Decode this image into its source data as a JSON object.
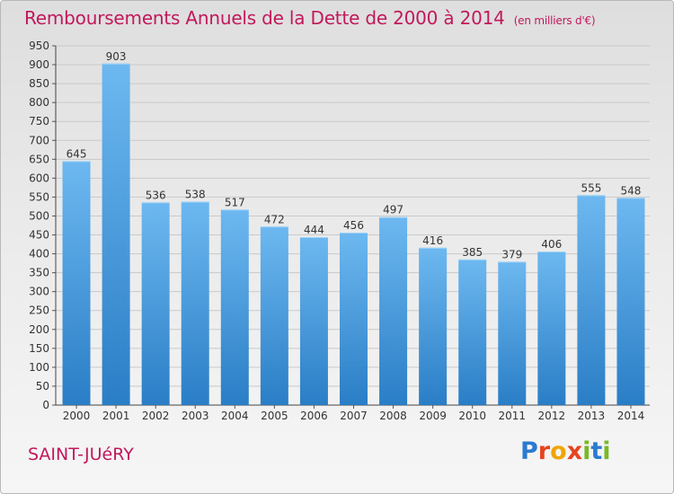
{
  "header": {
    "title": "Remboursements Annuels de la Dette de 2000 à 2014",
    "unit": "(en milliers d'€)"
  },
  "footer": {
    "place": "SAINT-JUéRY",
    "logo_letters": [
      "P",
      "r",
      "o",
      "x",
      "i",
      "t",
      "i"
    ]
  },
  "colors": {
    "title": "#c2185b",
    "bar_light": "#6db8f0",
    "bar_dark": "#2a7ec6",
    "grid": "#c9c9c9"
  },
  "chart_data": {
    "type": "bar",
    "title": "Remboursements Annuels de la Dette de 2000 à 2014",
    "xlabel": "",
    "ylabel": "",
    "categories": [
      "2000",
      "2001",
      "2002",
      "2003",
      "2004",
      "2005",
      "2006",
      "2007",
      "2008",
      "2009",
      "2010",
      "2011",
      "2012",
      "2013",
      "2014"
    ],
    "values": [
      645,
      903,
      536,
      538,
      517,
      472,
      444,
      456,
      497,
      416,
      385,
      379,
      406,
      555,
      548
    ],
    "ylim": [
      0,
      950
    ],
    "yticks": [
      0,
      50,
      100,
      150,
      200,
      250,
      300,
      350,
      400,
      450,
      500,
      550,
      600,
      650,
      700,
      750,
      800,
      850,
      900,
      950
    ],
    "grid": true
  }
}
